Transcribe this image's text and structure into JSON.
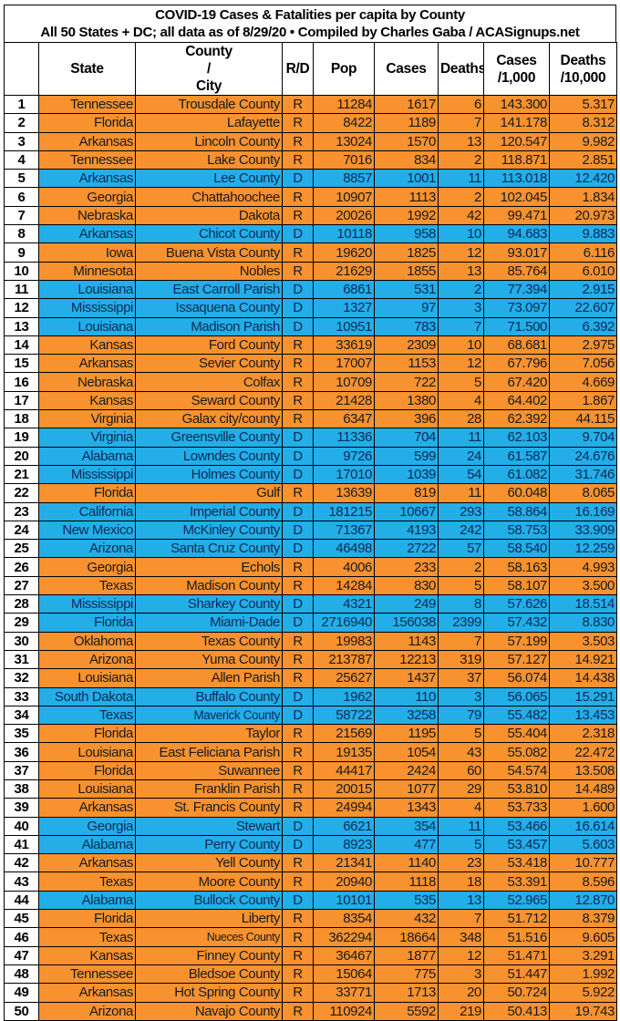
{
  "title": {
    "line1": "COVID-19 Cases & Fatalities per capita by County",
    "line2": "All 50 States + DC; all data as of 8/29/20  • Compiled by Charles Gaba / ACASignups.net"
  },
  "colors": {
    "R": "#F7922F",
    "D": "#23AEE8"
  },
  "columns": [
    "",
    "State",
    "County / City",
    "R/D",
    "Pop",
    "Cases",
    "Deaths",
    "Cases /1,000",
    "Deaths /10,000"
  ],
  "rows": [
    [
      "1",
      "Tennessee",
      "Trousdale County",
      "R",
      "11284",
      "1617",
      "6",
      "143.300",
      "5.317"
    ],
    [
      "2",
      "Florida",
      "Lafayette",
      "R",
      "8422",
      "1189",
      "7",
      "141.178",
      "8.312"
    ],
    [
      "3",
      "Arkansas",
      "Lincoln County",
      "R",
      "13024",
      "1570",
      "13",
      "120.547",
      "9.982"
    ],
    [
      "4",
      "Tennessee",
      "Lake County",
      "R",
      "7016",
      "834",
      "2",
      "118.871",
      "2.851"
    ],
    [
      "5",
      "Arkansas",
      "Lee County",
      "D",
      "8857",
      "1001",
      "11",
      "113.018",
      "12.420"
    ],
    [
      "6",
      "Georgia",
      "Chattahoochee",
      "R",
      "10907",
      "1113",
      "2",
      "102.045",
      "1.834"
    ],
    [
      "7",
      "Nebraska",
      "Dakota",
      "R",
      "20026",
      "1992",
      "42",
      "99.471",
      "20.973"
    ],
    [
      "8",
      "Arkansas",
      "Chicot County",
      "D",
      "10118",
      "958",
      "10",
      "94.683",
      "9.883"
    ],
    [
      "9",
      "Iowa",
      "Buena Vista County",
      "R",
      "19620",
      "1825",
      "12",
      "93.017",
      "6.116"
    ],
    [
      "10",
      "Minnesota",
      "Nobles",
      "R",
      "21629",
      "1855",
      "13",
      "85.764",
      "6.010"
    ],
    [
      "11",
      "Louisiana",
      "East Carroll Parish",
      "D",
      "6861",
      "531",
      "2",
      "77.394",
      "2.915"
    ],
    [
      "12",
      "Mississippi",
      "Issaquena County",
      "D",
      "1327",
      "97",
      "3",
      "73.097",
      "22.607"
    ],
    [
      "13",
      "Louisiana",
      "Madison Parish",
      "D",
      "10951",
      "783",
      "7",
      "71.500",
      "6.392"
    ],
    [
      "14",
      "Kansas",
      "Ford County",
      "R",
      "33619",
      "2309",
      "10",
      "68.681",
      "2.975"
    ],
    [
      "15",
      "Arkansas",
      "Sevier County",
      "R",
      "17007",
      "1153",
      "12",
      "67.796",
      "7.056"
    ],
    [
      "16",
      "Nebraska",
      "Colfax",
      "R",
      "10709",
      "722",
      "5",
      "67.420",
      "4.669"
    ],
    [
      "17",
      "Kansas",
      "Seward County",
      "R",
      "21428",
      "1380",
      "4",
      "64.402",
      "1.867"
    ],
    [
      "18",
      "Virginia",
      "Galax city/county",
      "R",
      "6347",
      "396",
      "28",
      "62.392",
      "44.115"
    ],
    [
      "19",
      "Virginia",
      "Greensville County",
      "D",
      "11336",
      "704",
      "11",
      "62.103",
      "9.704"
    ],
    [
      "20",
      "Alabama",
      "Lowndes County",
      "D",
      "9726",
      "599",
      "24",
      "61.587",
      "24.676"
    ],
    [
      "21",
      "Mississippi",
      "Holmes County",
      "D",
      "17010",
      "1039",
      "54",
      "61.082",
      "31.746"
    ],
    [
      "22",
      "Florida",
      "Gulf",
      "R",
      "13639",
      "819",
      "11",
      "60.048",
      "8.065"
    ],
    [
      "23",
      "California",
      "Imperial County",
      "D",
      "181215",
      "10667",
      "293",
      "58.864",
      "16.169"
    ],
    [
      "24",
      "New Mexico",
      "McKinley County",
      "D",
      "71367",
      "4193",
      "242",
      "58.753",
      "33.909"
    ],
    [
      "25",
      "Arizona",
      "Santa Cruz County",
      "D",
      "46498",
      "2722",
      "57",
      "58.540",
      "12.259"
    ],
    [
      "26",
      "Georgia",
      "Echols",
      "R",
      "4006",
      "233",
      "2",
      "58.163",
      "4.993"
    ],
    [
      "27",
      "Texas",
      "Madison County",
      "R",
      "14284",
      "830",
      "5",
      "58.107",
      "3.500"
    ],
    [
      "28",
      "Mississippi",
      "Sharkey County",
      "D",
      "4321",
      "249",
      "8",
      "57.626",
      "18.514"
    ],
    [
      "29",
      "Florida",
      "Miami-Dade",
      "D",
      "2716940",
      "156038",
      "2399",
      "57.432",
      "8.830"
    ],
    [
      "30",
      "Oklahoma",
      "Texas County",
      "R",
      "19983",
      "1143",
      "7",
      "57.199",
      "3.503"
    ],
    [
      "31",
      "Arizona",
      "Yuma County",
      "R",
      "213787",
      "12213",
      "319",
      "57.127",
      "14.921"
    ],
    [
      "32",
      "Louisiana",
      "Allen Parish",
      "R",
      "25627",
      "1437",
      "37",
      "56.074",
      "14.438"
    ],
    [
      "33",
      "South Dakota",
      "Buffalo County",
      "D",
      "1962",
      "110",
      "3",
      "56.065",
      "15.291"
    ],
    [
      "34",
      "Texas",
      "Maverick County",
      "D",
      "58722",
      "3258",
      "79",
      "55.482",
      "13.453"
    ],
    [
      "35",
      "Florida",
      "Taylor",
      "R",
      "21569",
      "1195",
      "5",
      "55.404",
      "2.318"
    ],
    [
      "36",
      "Louisiana",
      "East Feliciana Parish",
      "R",
      "19135",
      "1054",
      "43",
      "55.082",
      "22.472"
    ],
    [
      "37",
      "Florida",
      "Suwannee",
      "R",
      "44417",
      "2424",
      "60",
      "54.574",
      "13.508"
    ],
    [
      "38",
      "Louisiana",
      "Franklin Parish",
      "R",
      "20015",
      "1077",
      "29",
      "53.810",
      "14.489"
    ],
    [
      "39",
      "Arkansas",
      "St. Francis County",
      "R",
      "24994",
      "1343",
      "4",
      "53.733",
      "1.600"
    ],
    [
      "40",
      "Georgia",
      "Stewart",
      "D",
      "6621",
      "354",
      "11",
      "53.466",
      "16.614"
    ],
    [
      "41",
      "Alabama",
      "Perry County",
      "D",
      "8923",
      "477",
      "5",
      "53.457",
      "5.603"
    ],
    [
      "42",
      "Arkansas",
      "Yell County",
      "R",
      "21341",
      "1140",
      "23",
      "53.418",
      "10.777"
    ],
    [
      "43",
      "Texas",
      "Moore County",
      "R",
      "20940",
      "1118",
      "18",
      "53.391",
      "8.596"
    ],
    [
      "44",
      "Alabama",
      "Bullock County",
      "D",
      "10101",
      "535",
      "13",
      "52.965",
      "12.870"
    ],
    [
      "45",
      "Florida",
      "Liberty",
      "R",
      "8354",
      "432",
      "7",
      "51.712",
      "8.379"
    ],
    [
      "46",
      "Texas",
      "Nueces County",
      "R",
      "362294",
      "18664",
      "348",
      "51.516",
      "9.605"
    ],
    [
      "47",
      "Kansas",
      "Finney County",
      "R",
      "36467",
      "1877",
      "12",
      "51.471",
      "3.291"
    ],
    [
      "48",
      "Tennessee",
      "Bledsoe County",
      "R",
      "15064",
      "775",
      "3",
      "51.447",
      "1.992"
    ],
    [
      "49",
      "Arkansas",
      "Hot Spring County",
      "R",
      "33771",
      "1713",
      "20",
      "50.724",
      "5.922"
    ],
    [
      "50",
      "Arizona",
      "Navajo County",
      "R",
      "110924",
      "5592",
      "219",
      "50.413",
      "19.743"
    ]
  ]
}
